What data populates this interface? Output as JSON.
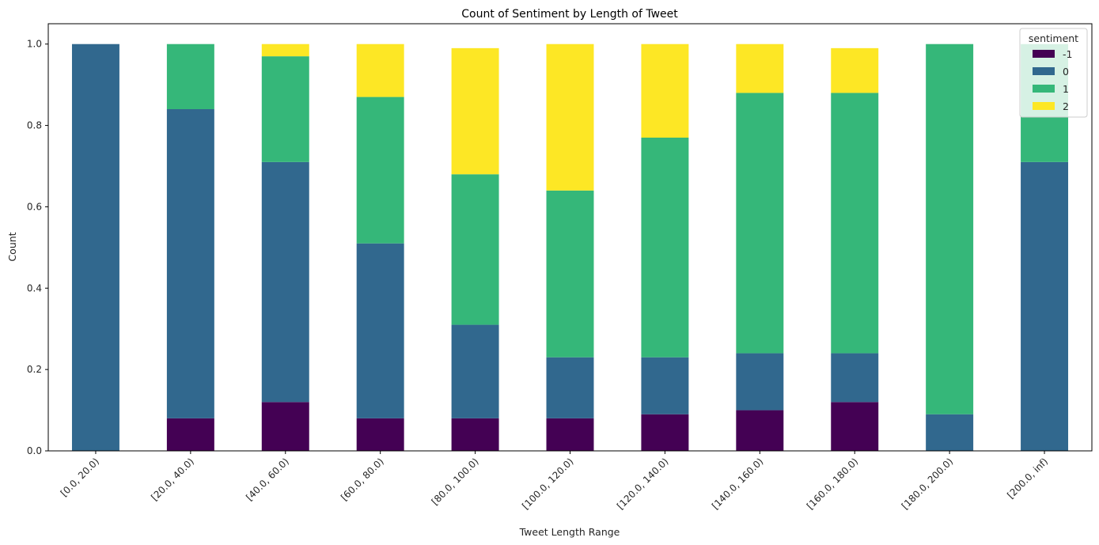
{
  "chart_data": {
    "type": "bar",
    "stacked": true,
    "title": "Count of Sentiment by Length of Tweet",
    "xlabel": "Tweet Length Range",
    "ylabel": "Count",
    "ylim": [
      0,
      1.05
    ],
    "yticks": [
      "0.0",
      "0.2",
      "0.4",
      "0.6",
      "0.8",
      "1.0"
    ],
    "categories": [
      "[0.0, 20.0)",
      "[20.0, 40.0)",
      "[40.0, 60.0)",
      "[60.0, 80.0)",
      "[80.0, 100.0)",
      "[100.0, 120.0)",
      "[120.0, 140.0)",
      "[140.0, 160.0)",
      "[160.0, 180.0)",
      "[180.0, 200.0)",
      "[200.0, inf)"
    ],
    "legend": {
      "title": "sentiment",
      "placement": "top-right"
    },
    "series": [
      {
        "name": "-1",
        "color": "#440154",
        "values": [
          0.0,
          0.08,
          0.12,
          0.08,
          0.08,
          0.08,
          0.09,
          0.1,
          0.12,
          0.0,
          0.0
        ]
      },
      {
        "name": "0",
        "color": "#31688e",
        "values": [
          1.0,
          0.76,
          0.59,
          0.43,
          0.23,
          0.15,
          0.14,
          0.14,
          0.12,
          0.09,
          0.71
        ]
      },
      {
        "name": "1",
        "color": "#35b779",
        "values": [
          0.0,
          0.16,
          0.26,
          0.36,
          0.37,
          0.41,
          0.54,
          0.64,
          0.64,
          0.91,
          0.29
        ]
      },
      {
        "name": "2",
        "color": "#fde725",
        "values": [
          0.0,
          0.0,
          0.03,
          0.13,
          0.31,
          0.36,
          0.23,
          0.12,
          0.11,
          0.0,
          0.0
        ]
      }
    ],
    "grid": false
  }
}
